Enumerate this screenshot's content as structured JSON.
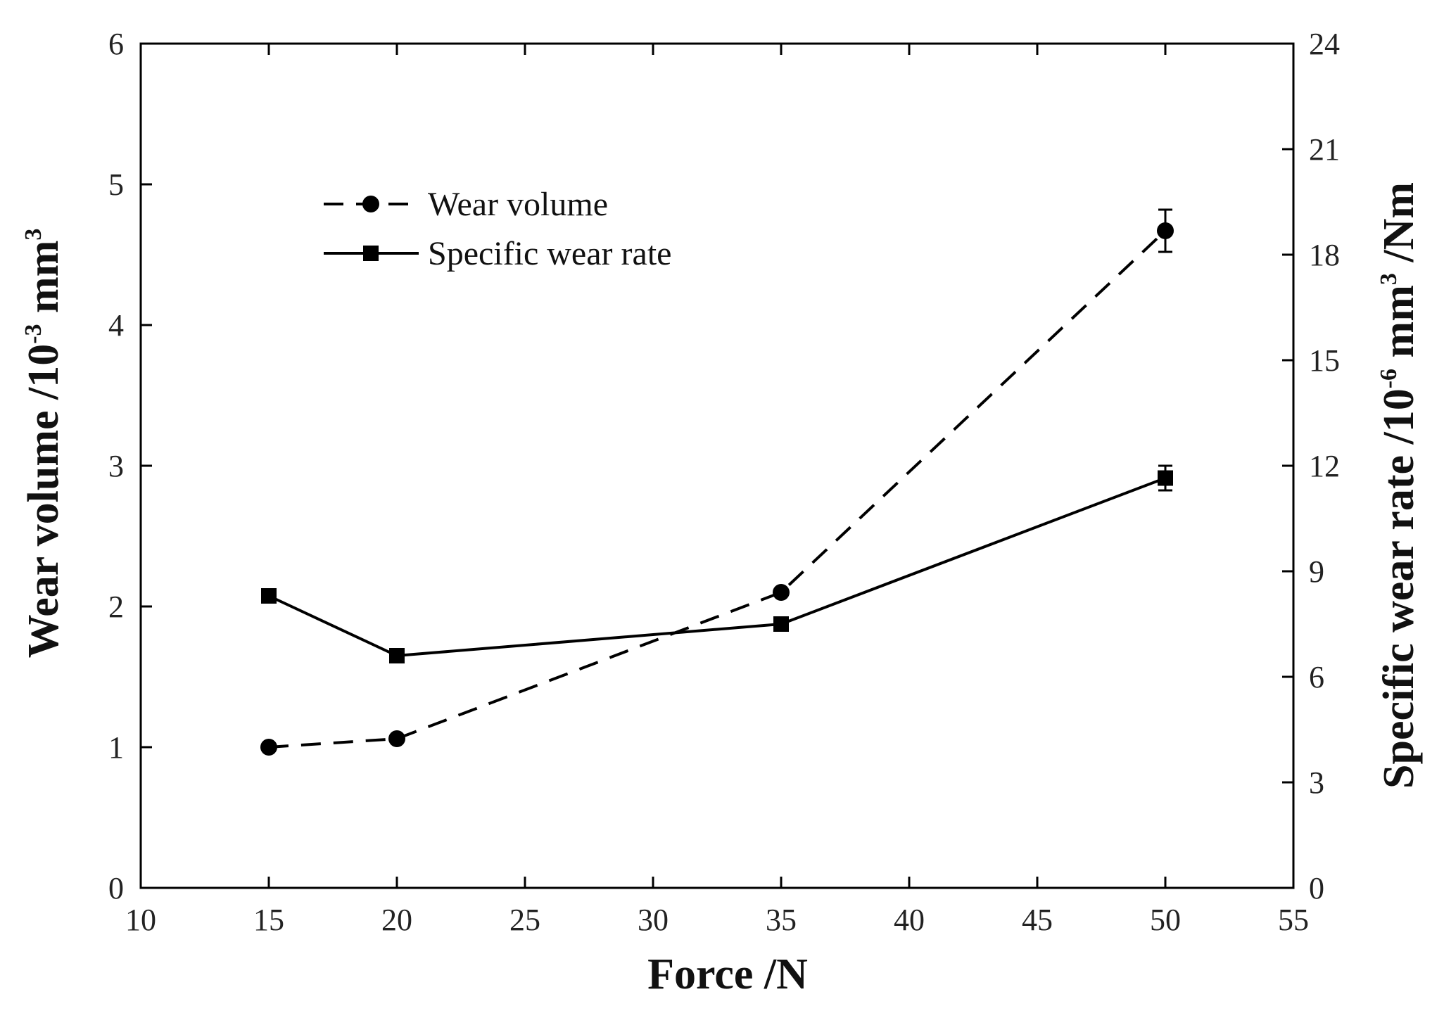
{
  "chart_data": {
    "type": "line",
    "title": "",
    "xlabel": "Force /N",
    "ylabel": {
      "base": "Wear volume /10",
      "sup": "-3",
      "unit": " mm",
      "unit_sup": "3"
    },
    "y2label": {
      "base": "Specific wear rate /10",
      "sup": "-6",
      "unit": " mm",
      "unit_sup": "3",
      "tail": " /Nm"
    },
    "xlim": [
      10,
      55
    ],
    "ylim": [
      0,
      6
    ],
    "y2lim": [
      0,
      24
    ],
    "x_ticks": [
      10,
      15,
      20,
      25,
      30,
      35,
      40,
      45,
      50,
      55
    ],
    "y_ticks": [
      0,
      1,
      2,
      3,
      4,
      5,
      6
    ],
    "y2_ticks": [
      0,
      3,
      6,
      9,
      12,
      15,
      18,
      21,
      24
    ],
    "legend_position": "top-left",
    "series": [
      {
        "name": "Wear volume",
        "axis": "left",
        "marker": "circle",
        "line_style": "dashed",
        "x": [
          15,
          20,
          35,
          50
        ],
        "values": [
          1.0,
          1.06,
          2.1,
          4.67
        ],
        "errors": [
          0,
          0,
          0,
          0.15
        ]
      },
      {
        "name": "Specific wear rate",
        "axis": "right",
        "marker": "square",
        "line_style": "solid",
        "x": [
          15,
          20,
          35,
          50
        ],
        "values": [
          8.3,
          6.6,
          7.5,
          11.65
        ],
        "errors": [
          0,
          0,
          0,
          0.35
        ]
      }
    ],
    "colors": {
      "line": "#000000",
      "axis": "#000000",
      "text": "#111111"
    }
  }
}
